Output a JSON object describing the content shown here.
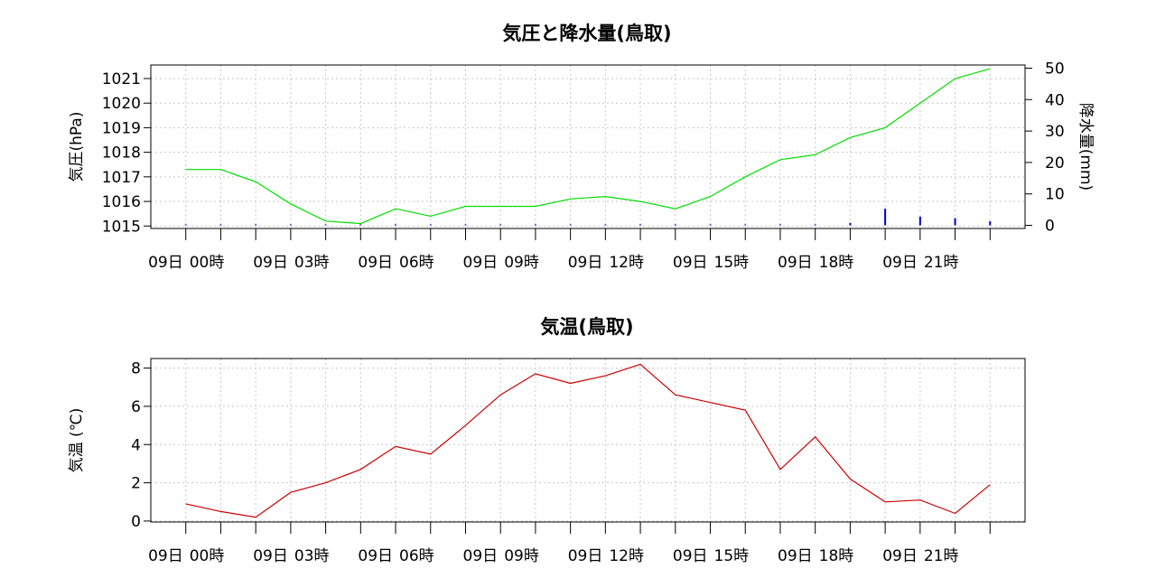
{
  "colors": {
    "pressure": "#00dd00",
    "precip": "#0000cc",
    "temperature": "#cc0000",
    "grid": "#c8c8c8",
    "frame": "#000000"
  },
  "chart_data": [
    {
      "type": "line",
      "title": "気圧と降水量(鳥取)",
      "x_tick_labels": [
        [
          "09日",
          "00時"
        ],
        [
          "09日",
          "03時"
        ],
        [
          "09日",
          "06時"
        ],
        [
          "09日",
          "09時"
        ],
        [
          "09日",
          "12時"
        ],
        [
          "09日",
          "15時"
        ],
        [
          "09日",
          "18時"
        ],
        [
          "09日",
          "21時"
        ]
      ],
      "x": [
        0,
        1,
        2,
        3,
        4,
        5,
        6,
        7,
        8,
        9,
        10,
        11,
        12,
        13,
        14,
        15,
        16,
        17,
        18,
        19,
        20,
        21,
        22,
        23
      ],
      "xlim": [
        -1,
        24
      ],
      "ylabel": "気圧(hPa)",
      "ylim": [
        1014.9,
        1021.55
      ],
      "y_ticks": [
        1015,
        1016,
        1017,
        1018,
        1019,
        1020,
        1021
      ],
      "y2label": "降水量(mm)",
      "y2lim": [
        -1,
        51
      ],
      "y2_ticks": [
        0,
        10,
        20,
        30,
        40,
        50
      ],
      "grid": true,
      "series": [
        {
          "type": "line",
          "axis": "left",
          "values": [
            1017.3,
            1017.3,
            1016.8,
            1015.9,
            1015.2,
            1015.1,
            1015.7,
            1015.4,
            1015.8,
            1015.8,
            1015.8,
            1016.1,
            1016.2,
            1016.0,
            1015.7,
            1016.2,
            1017.0,
            1017.7,
            1017.9,
            1018.6,
            1019.0,
            1020.0,
            1021.0,
            1021.4
          ]
        },
        {
          "type": "bar",
          "axis": "right",
          "values": [
            0,
            0,
            0,
            0,
            0,
            0,
            0,
            0,
            0,
            0,
            0,
            0,
            0,
            0,
            0,
            0,
            0,
            0,
            0,
            0.5,
            5,
            2.5,
            2,
            1
          ]
        }
      ]
    },
    {
      "type": "line",
      "title": "気温(鳥取)",
      "x_tick_labels": [
        [
          "09日",
          "00時"
        ],
        [
          "09日",
          "03時"
        ],
        [
          "09日",
          "06時"
        ],
        [
          "09日",
          "09時"
        ],
        [
          "09日",
          "12時"
        ],
        [
          "09日",
          "15時"
        ],
        [
          "09日",
          "18時"
        ],
        [
          "09日",
          "21時"
        ]
      ],
      "x": [
        0,
        1,
        2,
        3,
        4,
        5,
        6,
        7,
        8,
        9,
        10,
        11,
        12,
        13,
        14,
        15,
        16,
        17,
        18,
        19,
        20,
        21,
        22,
        23
      ],
      "xlim": [
        -1,
        24
      ],
      "ylabel": "気温 (℃)",
      "ylim": [
        -0.05,
        8.5
      ],
      "y_ticks": [
        0,
        2,
        4,
        6,
        8
      ],
      "grid": true,
      "series": [
        {
          "type": "line",
          "values": [
            0.9,
            0.5,
            0.2,
            1.5,
            2.0,
            2.7,
            3.9,
            3.5,
            5.0,
            6.6,
            7.7,
            7.2,
            7.6,
            8.2,
            6.6,
            6.2,
            5.8,
            2.7,
            4.4,
            2.2,
            1.0,
            1.1,
            0.4,
            1.9
          ]
        }
      ]
    }
  ]
}
